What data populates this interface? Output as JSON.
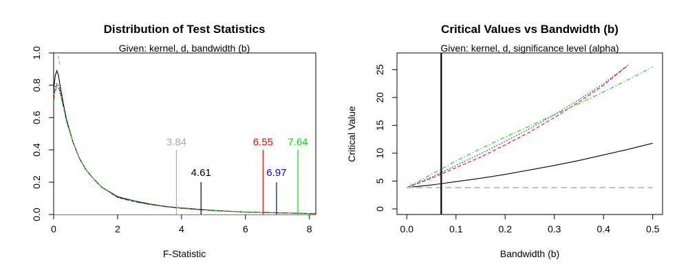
{
  "chart_data": [
    {
      "type": "line",
      "title": "Distribution of Test Statistics",
      "subtitle": "Given: kernel, d, bandwidth (b)",
      "xlabel": "F-Statistic",
      "ylabel": "",
      "xlim": [
        0,
        8.2
      ],
      "ylim": [
        0,
        1.0
      ],
      "xticks": [
        0,
        2,
        4,
        6,
        8
      ],
      "yticks": [
        0.0,
        0.2,
        0.4,
        0.6,
        0.8,
        1.0
      ],
      "xtick_labels": [
        "0",
        "2",
        "4",
        "6",
        "8"
      ],
      "ytick_labels": [
        "0.0",
        "0.2",
        "0.4",
        "0.6",
        "0.8",
        "1.0"
      ],
      "grid": false,
      "series": [
        {
          "color": "#000000",
          "dash": "solid",
          "x": [
            0.0,
            0.05,
            0.1,
            0.15,
            0.2,
            0.3,
            0.4,
            0.6,
            0.8,
            1.0,
            1.25,
            1.5,
            2.0,
            2.5,
            3.0,
            3.5,
            4.0,
            5.0,
            6.0,
            7.0,
            8.2
          ],
          "y": [
            0.77,
            0.86,
            0.89,
            0.86,
            0.8,
            0.69,
            0.59,
            0.45,
            0.35,
            0.28,
            0.22,
            0.17,
            0.11,
            0.085,
            0.065,
            0.05,
            0.04,
            0.025,
            0.015,
            0.01,
            0.005
          ]
        },
        {
          "color": "#ff0000",
          "dash": "dashed",
          "x": [
            0.0,
            0.05,
            0.1,
            0.15,
            0.2,
            0.3,
            0.4,
            0.6,
            0.8,
            1.0,
            1.25,
            1.5,
            2.0,
            2.5,
            3.0,
            3.5,
            4.0,
            5.0,
            6.0,
            7.0,
            8.2
          ],
          "y": [
            0.72,
            0.78,
            0.8,
            0.79,
            0.76,
            0.67,
            0.58,
            0.45,
            0.35,
            0.28,
            0.22,
            0.17,
            0.105,
            0.08,
            0.062,
            0.048,
            0.038,
            0.024,
            0.015,
            0.01,
            0.005
          ]
        },
        {
          "color": "#0000ff",
          "dash": "dotted",
          "x": [
            0.0,
            0.05,
            0.1,
            0.15,
            0.2,
            0.3,
            0.4,
            0.6,
            0.8,
            1.0,
            1.25,
            1.5,
            2.0,
            2.5,
            3.0,
            3.5,
            4.0,
            5.0,
            6.0,
            7.0,
            8.2
          ],
          "y": [
            0.74,
            0.79,
            0.81,
            0.8,
            0.77,
            0.68,
            0.58,
            0.45,
            0.35,
            0.28,
            0.22,
            0.17,
            0.105,
            0.08,
            0.062,
            0.048,
            0.038,
            0.024,
            0.015,
            0.01,
            0.005
          ]
        },
        {
          "color": "#00dd00",
          "dash": "dotdash",
          "x": [
            0.0,
            0.05,
            0.1,
            0.15,
            0.2,
            0.3,
            0.4,
            0.6,
            0.8,
            1.0,
            1.25,
            1.5,
            2.0,
            2.5,
            3.0,
            3.5,
            4.0,
            5.0,
            6.0,
            7.0,
            8.2
          ],
          "y": [
            0.69,
            0.76,
            0.79,
            0.78,
            0.75,
            0.67,
            0.58,
            0.45,
            0.35,
            0.28,
            0.22,
            0.17,
            0.105,
            0.08,
            0.062,
            0.048,
            0.038,
            0.024,
            0.015,
            0.01,
            0.005
          ]
        },
        {
          "color": "#bbbbbb",
          "dash": "dashed",
          "x": [
            0.1,
            0.13,
            0.16,
            0.2
          ],
          "y": [
            1.05,
            1.0,
            0.96,
            0.92
          ]
        }
      ],
      "critical_lines": [
        {
          "x": 3.84,
          "label": "3.84",
          "color": "#aaaaaa",
          "y_top": 0.4,
          "label_y": 0.45
        },
        {
          "x": 4.61,
          "label": "4.61",
          "color": "#000000",
          "y_top": 0.2,
          "label_y": 0.26
        },
        {
          "x": 6.55,
          "label": "6.55",
          "color": "#ff0000",
          "y_top": 0.4,
          "label_y": 0.45
        },
        {
          "x": 6.97,
          "label": "6.97",
          "color": "#0000ff",
          "y_top": 0.2,
          "label_y": 0.26
        },
        {
          "x": 7.64,
          "label": "7.64",
          "color": "#00dd00",
          "y_top": 0.4,
          "label_y": 0.45
        }
      ]
    },
    {
      "type": "line",
      "title": "Critical Values vs Bandwidth (b)",
      "subtitle": "Given: kernel, d, significance level (alpha)",
      "xlabel": "Bandwidth (b)",
      "ylabel": "Critical Value",
      "xlim": [
        -0.02,
        0.52
      ],
      "ylim": [
        -1,
        28
      ],
      "xticks": [
        0.0,
        0.1,
        0.2,
        0.3,
        0.4,
        0.5
      ],
      "yticks": [
        0,
        5,
        10,
        15,
        20,
        25
      ],
      "xtick_labels": [
        "0.0",
        "0.1",
        "0.2",
        "0.3",
        "0.4",
        "0.5"
      ],
      "ytick_labels": [
        "0",
        "5",
        "10",
        "15",
        "20",
        "25"
      ],
      "grid": false,
      "vertical_line": {
        "x": 0.07,
        "color": "#000000"
      },
      "series": [
        {
          "color": "#000000",
          "dash": "solid",
          "x": [
            0.0,
            0.05,
            0.1,
            0.15,
            0.2,
            0.25,
            0.3,
            0.35,
            0.4,
            0.45,
            0.5
          ],
          "y": [
            3.84,
            4.3,
            4.9,
            5.5,
            6.2,
            7.0,
            7.8,
            8.7,
            9.7,
            10.7,
            11.8
          ]
        },
        {
          "color": "#ff0000",
          "dash": "dashed",
          "x": [
            0.0,
            0.05,
            0.1,
            0.15,
            0.2,
            0.25,
            0.3,
            0.35,
            0.4,
            0.45
          ],
          "y": [
            3.84,
            5.5,
            7.4,
            9.3,
            11.5,
            13.8,
            16.4,
            19.2,
            22.2,
            25.8
          ]
        },
        {
          "color": "#0000ff",
          "dash": "dotted",
          "x": [
            0.0,
            0.05,
            0.1,
            0.15,
            0.2,
            0.25,
            0.3,
            0.35,
            0.4,
            0.45
          ],
          "y": [
            3.84,
            5.7,
            7.8,
            9.9,
            12.1,
            14.4,
            16.9,
            19.6,
            22.5,
            25.8
          ]
        },
        {
          "color": "#00dd00",
          "dash": "dotdash",
          "x": [
            0.0,
            0.05,
            0.1,
            0.15,
            0.2,
            0.25,
            0.3,
            0.35,
            0.4,
            0.45,
            0.5
          ],
          "y": [
            3.84,
            6.2,
            8.6,
            10.8,
            12.9,
            14.9,
            16.9,
            18.9,
            21.0,
            23.2,
            25.5
          ]
        },
        {
          "color": "#bbbbbb",
          "dash": "longdash",
          "x": [
            0.0,
            0.5
          ],
          "y": [
            3.84,
            3.84
          ]
        }
      ]
    }
  ]
}
